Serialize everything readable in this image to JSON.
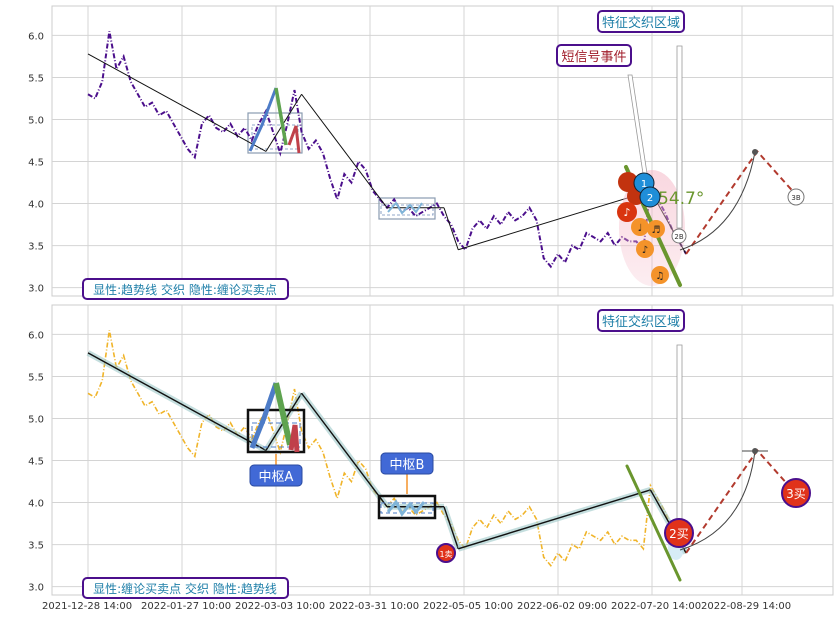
{
  "chart_data": [
    {
      "type": "line",
      "panel": "top",
      "ylim": [
        2.9,
        6.35
      ],
      "yticks": [
        "3.0",
        "3.5",
        "4.0",
        "4.5",
        "5.0",
        "5.5",
        "6.0"
      ],
      "grid": true,
      "series_color": "#4b0f8c",
      "price": [
        [
          0,
          5.3
        ],
        [
          1,
          5.25
        ],
        [
          2,
          5.45
        ],
        [
          3,
          6.05
        ],
        [
          4,
          5.6
        ],
        [
          5,
          5.75
        ],
        [
          6,
          5.45
        ],
        [
          7,
          5.3
        ],
        [
          8,
          5.15
        ],
        [
          9,
          5.2
        ],
        [
          10,
          5.05
        ],
        [
          11,
          5.1
        ],
        [
          12,
          4.95
        ],
        [
          13,
          4.8
        ],
        [
          14,
          4.65
        ],
        [
          15,
          4.55
        ],
        [
          16,
          4.95
        ],
        [
          17,
          5.05
        ],
        [
          18,
          4.9
        ],
        [
          19,
          4.85
        ],
        [
          20,
          4.95
        ],
        [
          21,
          4.8
        ],
        [
          22,
          4.9
        ],
        [
          23,
          4.75
        ],
        [
          24,
          4.95
        ],
        [
          25,
          5.1
        ],
        [
          26,
          4.85
        ],
        [
          27,
          4.6
        ],
        [
          28,
          4.95
        ],
        [
          29,
          5.35
        ],
        [
          30,
          4.85
        ],
        [
          31,
          4.65
        ],
        [
          32,
          4.75
        ],
        [
          33,
          4.6
        ],
        [
          34,
          4.3
        ],
        [
          35,
          4.05
        ],
        [
          36,
          4.35
        ],
        [
          37,
          4.25
        ],
        [
          38,
          4.5
        ],
        [
          39,
          4.4
        ],
        [
          40,
          4.15
        ],
        [
          41,
          4.05
        ],
        [
          42,
          3.95
        ],
        [
          43,
          4.05
        ],
        [
          44,
          3.9
        ],
        [
          45,
          3.95
        ],
        [
          46,
          3.85
        ],
        [
          47,
          3.9
        ],
        [
          48,
          3.95
        ],
        [
          49,
          4.0
        ],
        [
          50,
          3.85
        ],
        [
          51,
          3.75
        ],
        [
          52,
          3.55
        ],
        [
          53,
          3.45
        ],
        [
          54,
          3.7
        ],
        [
          55,
          3.8
        ],
        [
          56,
          3.7
        ],
        [
          57,
          3.85
        ],
        [
          58,
          3.75
        ],
        [
          59,
          3.9
        ],
        [
          60,
          3.8
        ],
        [
          61,
          3.85
        ],
        [
          62,
          3.95
        ],
        [
          63,
          3.8
        ],
        [
          64,
          3.35
        ],
        [
          65,
          3.25
        ],
        [
          66,
          3.4
        ],
        [
          67,
          3.3
        ],
        [
          68,
          3.5
        ],
        [
          69,
          3.45
        ],
        [
          70,
          3.65
        ],
        [
          71,
          3.6
        ],
        [
          72,
          3.55
        ],
        [
          73,
          3.65
        ],
        [
          74,
          3.5
        ],
        [
          75,
          3.6
        ],
        [
          76,
          3.55
        ],
        [
          77,
          3.55
        ],
        [
          78,
          3.45
        ],
        [
          79,
          4.2
        ],
        [
          80,
          4.05
        ],
        [
          81,
          3.9
        ],
        [
          82,
          3.7
        ],
        [
          83,
          3.55
        ],
        [
          84,
          3.4
        ]
      ],
      "trend_lines": [
        [
          [
            0,
            5.78
          ],
          [
            25,
            4.62
          ]
        ],
        [
          [
            25,
            4.62
          ],
          [
            30,
            5.3
          ]
        ],
        [
          [
            30,
            5.3
          ],
          [
            42,
            3.95
          ]
        ],
        [
          [
            42,
            3.95
          ],
          [
            50,
            3.95
          ]
        ],
        [
          [
            50,
            3.95
          ],
          [
            52,
            3.45
          ]
        ],
        [
          [
            52,
            3.45
          ],
          [
            79,
            4.15
          ]
        ],
        [
          [
            79,
            4.15
          ],
          [
            84,
            3.4
          ]
        ]
      ],
      "projection": [
        [
          84,
          3.4
        ],
        [
          94,
          4.62
        ],
        [
          100,
          4.05
        ]
      ],
      "symbols": [
        "1",
        "2",
        "♪",
        "♪",
        "♩",
        "♬",
        "♪",
        "♫",
        "2B",
        "3B"
      ],
      "angle_label": "54.7°",
      "annotations": [
        "特征交织区域",
        "短信号事件"
      ],
      "legend": "显性:趋势线 交织 隐性:缠论买卖点"
    },
    {
      "type": "line",
      "panel": "bottom",
      "ylim": [
        2.9,
        6.35
      ],
      "yticks": [
        "3.0",
        "3.5",
        "4.0",
        "4.5",
        "5.0",
        "5.5",
        "6.0"
      ],
      "grid": true,
      "series_color": "#f0b429",
      "x_ticks": [
        "2021-12-28 14:00",
        "2022-01-27 10:00",
        "2022-03-03 10:00",
        "2022-03-31 10:00",
        "2022-05-05 10:00",
        "2022-06-02 09:00",
        "2022-07-20 14:00",
        "2022-08-29 14:00"
      ],
      "centers": [
        "中枢A",
        "中枢B"
      ],
      "signals": [
        "1卖",
        "2买",
        "3买"
      ],
      "annotations": [
        "特征交织区域"
      ],
      "legend": "显性:缠论买卖点 交织 隐性:趋势线"
    }
  ]
}
